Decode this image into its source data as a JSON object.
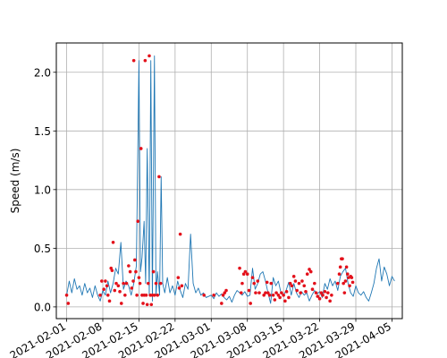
{
  "chart_data": {
    "type": "line",
    "title": "",
    "xlabel": "",
    "ylabel": "Speed (m/s)",
    "x_axis_type": "date",
    "xlim": [
      "2021-01-30",
      "2021-04-07"
    ],
    "ylim": [
      -0.1,
      2.25
    ],
    "grid": true,
    "x_ticks": [
      "2021-02-01",
      "2021-02-08",
      "2021-02-15",
      "2021-02-22",
      "2021-03-01",
      "2021-03-08",
      "2021-03-15",
      "2021-03-22",
      "2021-03-29",
      "2021-04-05"
    ],
    "y_ticks": [
      0.0,
      0.5,
      1.0,
      1.5,
      2.0
    ],
    "y_tick_labels": [
      "0.0",
      "0.5",
      "1.0",
      "1.5",
      "2.0"
    ],
    "colors": {
      "line": "#1f77b4",
      "markers": "#e3111b"
    },
    "series": [
      {
        "style": "line",
        "points": [
          [
            "2021-02-01",
            0.1
          ],
          [
            "2021-02-01.5",
            0.22
          ],
          [
            "2021-02-02",
            0.12
          ],
          [
            "2021-02-02.5",
            0.24
          ],
          [
            "2021-02-03",
            0.15
          ],
          [
            "2021-02-03.5",
            0.18
          ],
          [
            "2021-02-04",
            0.1
          ],
          [
            "2021-02-04.5",
            0.2
          ],
          [
            "2021-02-05",
            0.12
          ],
          [
            "2021-02-05.5",
            0.16
          ],
          [
            "2021-02-06",
            0.08
          ],
          [
            "2021-02-06.5",
            0.18
          ],
          [
            "2021-02-07",
            0.1
          ],
          [
            "2021-02-07.5",
            0.05
          ],
          [
            "2021-02-08",
            0.14
          ],
          [
            "2021-02-08.5",
            0.1
          ],
          [
            "2021-02-09",
            0.22
          ],
          [
            "2021-02-09.5",
            0.12
          ],
          [
            "2021-02-10",
            0.2
          ],
          [
            "2021-02-10.5",
            0.33
          ],
          [
            "2021-02-11",
            0.28
          ],
          [
            "2021-02-11.5",
            0.55
          ],
          [
            "2021-02-12",
            0.15
          ],
          [
            "2021-02-12.5",
            0.22
          ],
          [
            "2021-02-13",
            0.18
          ],
          [
            "2021-02-13.5",
            0.1
          ],
          [
            "2021-02-14",
            0.2
          ],
          [
            "2021-02-14.5",
            0.35
          ],
          [
            "2021-02-15",
            2.1
          ],
          [
            "2021-02-15.3",
            0.3
          ],
          [
            "2021-02-15.6",
            0.42
          ],
          [
            "2021-02-16",
            0.73
          ],
          [
            "2021-02-16.3",
            0.2
          ],
          [
            "2021-02-16.6",
            1.35
          ],
          [
            "2021-02-17",
            0.1
          ],
          [
            "2021-02-17.3",
            2.1
          ],
          [
            "2021-02-17.6",
            0.05
          ],
          [
            "2021-02-18",
            2.14
          ],
          [
            "2021-02-18.3",
            0.1
          ],
          [
            "2021-02-18.6",
            0.3
          ],
          [
            "2021-02-19",
            0.1
          ],
          [
            "2021-02-19.3",
            1.11
          ],
          [
            "2021-02-19.6",
            0.2
          ],
          [
            "2021-02-20",
            0.12
          ],
          [
            "2021-02-20.5",
            0.25
          ],
          [
            "2021-02-21",
            0.12
          ],
          [
            "2021-02-21.5",
            0.18
          ],
          [
            "2021-02-22",
            0.1
          ],
          [
            "2021-02-22.5",
            0.22
          ],
          [
            "2021-02-23",
            0.14
          ],
          [
            "2021-02-23.5",
            0.08
          ],
          [
            "2021-02-24",
            0.2
          ],
          [
            "2021-02-24.5",
            0.15
          ],
          [
            "2021-02-25",
            0.62
          ],
          [
            "2021-02-25.5",
            0.2
          ],
          [
            "2021-02-26",
            0.12
          ],
          [
            "2021-02-26.5",
            0.16
          ],
          [
            "2021-02-27",
            0.1
          ],
          [
            "2021-02-27.5",
            0.12
          ],
          [
            "2021-02-28",
            0.08
          ],
          [
            "2021-03-01",
            0.1
          ],
          [
            "2021-03-01.5",
            0.07
          ],
          [
            "2021-03-02",
            0.12
          ],
          [
            "2021-03-02.5",
            0.09
          ],
          [
            "2021-03-03",
            0.11
          ],
          [
            "2021-03-03.5",
            0.08
          ],
          [
            "2021-03-04",
            0.06
          ],
          [
            "2021-03-04.5",
            0.09
          ],
          [
            "2021-03-05",
            0.04
          ],
          [
            "2021-03-05.5",
            0.1
          ],
          [
            "2021-03-06",
            0.14
          ],
          [
            "2021-03-06.5",
            0.12
          ],
          [
            "2021-03-07",
            0.1
          ],
          [
            "2021-03-07.5",
            0.13
          ],
          [
            "2021-03-08",
            0.09
          ],
          [
            "2021-03-08.5",
            0.1
          ],
          [
            "2021-03-09",
            0.33
          ],
          [
            "2021-03-09.5",
            0.15
          ],
          [
            "2021-03-10",
            0.2
          ],
          [
            "2021-03-10.5",
            0.28
          ],
          [
            "2021-03-11",
            0.3
          ],
          [
            "2021-03-11.5",
            0.22
          ],
          [
            "2021-03-12",
            0.12
          ],
          [
            "2021-03-12.5",
            0.03
          ],
          [
            "2021-03-13",
            0.25
          ],
          [
            "2021-03-13.5",
            0.18
          ],
          [
            "2021-03-14",
            0.22
          ],
          [
            "2021-03-14.5",
            0.12
          ],
          [
            "2021-03-15",
            0.1
          ],
          [
            "2021-03-15.5",
            0.14
          ],
          [
            "2021-03-16",
            0.21
          ],
          [
            "2021-03-16.5",
            0.1
          ],
          [
            "2021-03-17",
            0.2
          ],
          [
            "2021-03-17.5",
            0.12
          ],
          [
            "2021-03-18",
            0.08
          ],
          [
            "2021-03-18.5",
            0.13
          ],
          [
            "2021-03-19",
            0.1
          ],
          [
            "2021-03-19.5",
            0.12
          ],
          [
            "2021-03-20",
            0.05
          ],
          [
            "2021-03-20.5",
            0.1
          ],
          [
            "2021-03-21",
            0.14
          ],
          [
            "2021-03-21.5",
            0.11
          ],
          [
            "2021-03-22",
            0.13
          ],
          [
            "2021-03-22.5",
            0.08
          ],
          [
            "2021-03-23",
            0.2
          ],
          [
            "2021-03-23.5",
            0.15
          ],
          [
            "2021-03-24",
            0.24
          ],
          [
            "2021-03-24.5",
            0.18
          ],
          [
            "2021-03-25",
            0.22
          ],
          [
            "2021-03-25.5",
            0.14
          ],
          [
            "2021-03-26",
            0.26
          ],
          [
            "2021-03-26.5",
            0.3
          ],
          [
            "2021-03-27",
            0.33
          ],
          [
            "2021-03-27.5",
            0.2
          ],
          [
            "2021-03-28",
            0.12
          ],
          [
            "2021-03-28.5",
            0.09
          ],
          [
            "2021-03-29",
            0.18
          ],
          [
            "2021-03-29.5",
            0.12
          ],
          [
            "2021-03-30",
            0.1
          ],
          [
            "2021-03-30.5",
            0.13
          ],
          [
            "2021-03-31",
            0.08
          ],
          [
            "2021-03-31.5",
            0.05
          ],
          [
            "2021-04-01",
            0.12
          ],
          [
            "2021-04-01.5",
            0.2
          ],
          [
            "2021-04-02",
            0.33
          ],
          [
            "2021-04-02.5",
            0.41
          ],
          [
            "2021-04-03",
            0.22
          ],
          [
            "2021-04-03.5",
            0.34
          ],
          [
            "2021-04-04",
            0.28
          ],
          [
            "2021-04-04.5",
            0.18
          ],
          [
            "2021-04-05",
            0.26
          ],
          [
            "2021-04-05.5",
            0.22
          ]
        ]
      },
      {
        "style": "markers",
        "points": [
          [
            "2021-02-01",
            0.1
          ],
          [
            "2021-02-01.3",
            0.03
          ],
          [
            "2021-02-07.5",
            0.1
          ],
          [
            "2021-02-07.8",
            0.22
          ],
          [
            "2021-02-08.2",
            0.15
          ],
          [
            "2021-02-08.5",
            0.22
          ],
          [
            "2021-02-08.8",
            0.18
          ],
          [
            "2021-02-09",
            0.1
          ],
          [
            "2021-02-09.3",
            0.05
          ],
          [
            "2021-02-09.6",
            0.33
          ],
          [
            "2021-02-09.8",
            0.31
          ],
          [
            "2021-02-10",
            0.55
          ],
          [
            "2021-02-10.3",
            0.14
          ],
          [
            "2021-02-10.6",
            0.2
          ],
          [
            "2021-02-11",
            0.18
          ],
          [
            "2021-02-11.3",
            0.13
          ],
          [
            "2021-02-11.6",
            0.03
          ],
          [
            "2021-02-12",
            0.2
          ],
          [
            "2021-02-12.3",
            0.1
          ],
          [
            "2021-02-12.6",
            0.2
          ],
          [
            "2021-02-13",
            0.35
          ],
          [
            "2021-02-13.3",
            0.3
          ],
          [
            "2021-02-13.6",
            0.16
          ],
          [
            "2021-02-13.9",
            0.22
          ],
          [
            "2021-02-14",
            2.1
          ],
          [
            "2021-02-14.2",
            0.4
          ],
          [
            "2021-02-14.4",
            0.3
          ],
          [
            "2021-02-14.6",
            0.1
          ],
          [
            "2021-02-14.8",
            0.73
          ],
          [
            "2021-02-15",
            0.25
          ],
          [
            "2021-02-15.2",
            0.2
          ],
          [
            "2021-02-15.4",
            1.35
          ],
          [
            "2021-02-15.6",
            0.1
          ],
          [
            "2021-02-15.8",
            0.03
          ],
          [
            "2021-02-16",
            0.1
          ],
          [
            "2021-02-16.2",
            2.1
          ],
          [
            "2021-02-16.4",
            0.1
          ],
          [
            "2021-02-16.6",
            0.02
          ],
          [
            "2021-02-16.8",
            0.2
          ],
          [
            "2021-02-17",
            2.14
          ],
          [
            "2021-02-17.2",
            0.1
          ],
          [
            "2021-02-17.4",
            0.02
          ],
          [
            "2021-02-17.6",
            0.1
          ],
          [
            "2021-02-17.8",
            0.3
          ],
          [
            "2021-02-18",
            0.1
          ],
          [
            "2021-02-18.3",
            0.2
          ],
          [
            "2021-02-18.6",
            0.1
          ],
          [
            "2021-02-18.9",
            1.11
          ],
          [
            "2021-02-19.2",
            0.2
          ],
          [
            "2021-02-22.6",
            0.25
          ],
          [
            "2021-02-22.8",
            0.16
          ],
          [
            "2021-02-23",
            0.62
          ],
          [
            "2021-02-23.3",
            0.18
          ],
          [
            "2021-02-27.6",
            0.1
          ],
          [
            "2021-03-01.5",
            0.1
          ],
          [
            "2021-03-03",
            0.03
          ],
          [
            "2021-03-03.3",
            0.1
          ],
          [
            "2021-03-03.6",
            0.12
          ],
          [
            "2021-03-03.9",
            0.14
          ],
          [
            "2021-03-06.5",
            0.33
          ],
          [
            "2021-03-06.8",
            0.12
          ],
          [
            "2021-03-07",
            0.2
          ],
          [
            "2021-03-07.3",
            0.28
          ],
          [
            "2021-03-07.6",
            0.3
          ],
          [
            "2021-03-08",
            0.28
          ],
          [
            "2021-03-08.3",
            0.14
          ],
          [
            "2021-03-08.6",
            0.03
          ],
          [
            "2021-03-09",
            0.25
          ],
          [
            "2021-03-09.3",
            0.2
          ],
          [
            "2021-03-09.6",
            0.12
          ],
          [
            "2021-03-10",
            0.22
          ],
          [
            "2021-03-10.3",
            0.12
          ],
          [
            "2021-03-11.2",
            0.1
          ],
          [
            "2021-03-11.5",
            0.12
          ],
          [
            "2021-03-11.8",
            0.21
          ],
          [
            "2021-03-12",
            0.12
          ],
          [
            "2021-03-12.3",
            0.1
          ],
          [
            "2021-03-12.6",
            0.2
          ],
          [
            "2021-03-13",
            0.1
          ],
          [
            "2021-03-13.3",
            0.06
          ],
          [
            "2021-03-13.6",
            0.12
          ],
          [
            "2021-03-14",
            0.1
          ],
          [
            "2021-03-14.3",
            0.08
          ],
          [
            "2021-03-14.6",
            0.12
          ],
          [
            "2021-03-15",
            0.1
          ],
          [
            "2021-03-15.3",
            0.05
          ],
          [
            "2021-03-15.6",
            0.13
          ],
          [
            "2021-03-16",
            0.08
          ],
          [
            "2021-03-16.3",
            0.2
          ],
          [
            "2021-03-16.6",
            0.18
          ],
          [
            "2021-03-17",
            0.26
          ],
          [
            "2021-03-17.3",
            0.22
          ],
          [
            "2021-03-17.6",
            0.14
          ],
          [
            "2021-03-18",
            0.2
          ],
          [
            "2021-03-18.3",
            0.12
          ],
          [
            "2021-03-18.6",
            0.22
          ],
          [
            "2021-03-19",
            0.18
          ],
          [
            "2021-03-19.3",
            0.13
          ],
          [
            "2021-03-19.6",
            0.28
          ],
          [
            "2021-03-20",
            0.32
          ],
          [
            "2021-03-20.3",
            0.3
          ],
          [
            "2021-03-20.6",
            0.15
          ],
          [
            "2021-03-21",
            0.2
          ],
          [
            "2021-03-21.3",
            0.12
          ],
          [
            "2021-03-21.6",
            0.09
          ],
          [
            "2021-03-22",
            0.07
          ],
          [
            "2021-03-22.3",
            0.12
          ],
          [
            "2021-03-22.6",
            0.1
          ],
          [
            "2021-03-23",
            0.13
          ],
          [
            "2021-03-23.3",
            0.08
          ],
          [
            "2021-03-23.6",
            0.12
          ],
          [
            "2021-03-24",
            0.05
          ],
          [
            "2021-03-24.3",
            0.1
          ],
          [
            "2021-03-25.5",
            0.2
          ],
          [
            "2021-03-25.8",
            0.28
          ],
          [
            "2021-03-26",
            0.34
          ],
          [
            "2021-03-26.2",
            0.41
          ],
          [
            "2021-03-26.4",
            0.41
          ],
          [
            "2021-03-26.6",
            0.2
          ],
          [
            "2021-03-26.8",
            0.12
          ],
          [
            "2021-03-27",
            0.22
          ],
          [
            "2021-03-27.2",
            0.34
          ],
          [
            "2021-03-27.4",
            0.28
          ],
          [
            "2021-03-27.6",
            0.25
          ],
          [
            "2021-03-27.8",
            0.18
          ],
          [
            "2021-03-28",
            0.26
          ],
          [
            "2021-03-28.2",
            0.25
          ],
          [
            "2021-03-28.4",
            0.21
          ]
        ]
      }
    ]
  }
}
